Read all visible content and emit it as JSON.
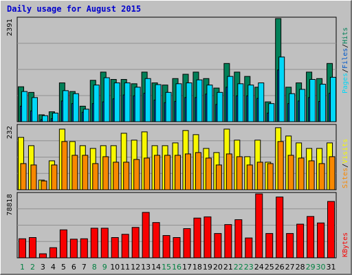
{
  "window": {
    "title": "Daily usage for August 2015"
  },
  "colors": {
    "background": "#c0c0c0",
    "plot_bg": "#c0c0c0",
    "title": "#0000cc",
    "pages": "#00d8f8",
    "files": "#0058c8",
    "hits": "#008058",
    "visits": "#f8f800",
    "sites": "#f88800",
    "kbytes": "#f80000",
    "weekday_label": "#000000",
    "weekend_label": "#008040"
  },
  "legend": {
    "top": [
      "Pages",
      "Files",
      "Hits"
    ],
    "middle": [
      "Sites",
      "Visits"
    ],
    "bottom": [
      "KBytes"
    ]
  },
  "chart_data": [
    {
      "type": "bar",
      "panel": "hits",
      "ymax_label": "2391",
      "ylim": [
        0,
        2391
      ],
      "categories": [
        "1",
        "2",
        "3",
        "4",
        "5",
        "6",
        "7",
        "8",
        "9",
        "10",
        "11",
        "12",
        "13",
        "14",
        "15",
        "16",
        "17",
        "18",
        "19",
        "20",
        "21",
        "22",
        "23",
        "24",
        "25",
        "26",
        "27",
        "28",
        "29",
        "30",
        "31"
      ],
      "weekend": [
        true,
        true,
        false,
        false,
        false,
        false,
        false,
        true,
        true,
        false,
        false,
        false,
        false,
        false,
        true,
        true,
        false,
        false,
        false,
        false,
        false,
        true,
        true,
        false,
        false,
        false,
        false,
        false,
        true,
        true,
        false
      ],
      "series": [
        {
          "name": "Hits",
          "values": [
            810,
            680,
            160,
            230,
            900,
            700,
            360,
            960,
            1150,
            980,
            980,
            880,
            1150,
            900,
            850,
            1000,
            1100,
            1150,
            1000,
            780,
            1350,
            1150,
            1050,
            800,
            460,
            2391,
            800,
            900,
            1150,
            1000,
            1350
          ]
        },
        {
          "name": "Files",
          "values": [
            360,
            250,
            50,
            70,
            480,
            420,
            220,
            420,
            460,
            530,
            620,
            600,
            660,
            500,
            440,
            470,
            560,
            560,
            640,
            400,
            800,
            600,
            600,
            540,
            200,
            1200,
            420,
            480,
            560,
            470,
            660
          ]
        },
        {
          "name": "Pages",
          "values": [
            700,
            560,
            140,
            200,
            720,
            650,
            290,
            850,
            1020,
            900,
            900,
            800,
            1000,
            860,
            680,
            880,
            900,
            970,
            850,
            680,
            1050,
            880,
            850,
            900,
            420,
            1500,
            650,
            750,
            980,
            870,
            1030
          ]
        }
      ]
    },
    {
      "type": "bar",
      "panel": "visits",
      "ymax_label": "232",
      "ylim": [
        0,
        232
      ],
      "categories": [
        "1",
        "2",
        "3",
        "4",
        "5",
        "6",
        "7",
        "8",
        "9",
        "10",
        "11",
        "12",
        "13",
        "14",
        "15",
        "16",
        "17",
        "18",
        "19",
        "20",
        "21",
        "22",
        "23",
        "24",
        "25",
        "26",
        "27",
        "28",
        "29",
        "30",
        "31"
      ],
      "series": [
        {
          "name": "Visits",
          "values": [
            190,
            160,
            35,
            105,
            220,
            175,
            160,
            150,
            160,
            160,
            205,
            180,
            210,
            160,
            160,
            170,
            215,
            200,
            150,
            135,
            220,
            180,
            120,
            180,
            100,
            225,
            195,
            170,
            150,
            150,
            170
          ]
        },
        {
          "name": "Sites",
          "values": [
            95,
            90,
            32,
            90,
            175,
            125,
            125,
            95,
            120,
            100,
            100,
            110,
            115,
            125,
            125,
            125,
            130,
            135,
            115,
            90,
            130,
            120,
            90,
            100,
            95,
            175,
            125,
            115,
            105,
            95,
            120
          ]
        }
      ]
    },
    {
      "type": "bar",
      "panel": "kbytes",
      "ymax_label": "78818",
      "ylim": [
        0,
        78818
      ],
      "categories": [
        "1",
        "2",
        "3",
        "4",
        "5",
        "6",
        "7",
        "8",
        "9",
        "10",
        "11",
        "12",
        "13",
        "14",
        "15",
        "16",
        "17",
        "18",
        "19",
        "20",
        "21",
        "22",
        "23",
        "24",
        "25",
        "26",
        "27",
        "28",
        "29",
        "30",
        "31"
      ],
      "series": [
        {
          "name": "KBytes",
          "values": [
            23500,
            25000,
            5000,
            12500,
            34500,
            23000,
            23500,
            36500,
            36500,
            25000,
            29000,
            37500,
            56000,
            43500,
            27500,
            25000,
            36000,
            49000,
            50500,
            30000,
            41000,
            47000,
            24500,
            78818,
            30000,
            75000,
            30000,
            41500,
            51000,
            43000,
            69500
          ]
        }
      ]
    }
  ]
}
